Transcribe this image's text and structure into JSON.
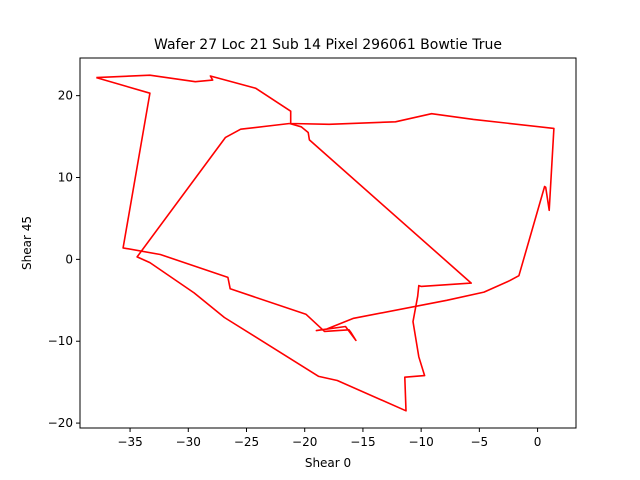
{
  "chart_data": {
    "type": "line",
    "title": "Wafer 27 Loc 21 Sub 14 Pixel 296061 Bowtie True",
    "xlabel": "Shear 0",
    "ylabel": "Shear 45",
    "xlim": [
      -39.3,
      3.3
    ],
    "ylim": [
      -20.6,
      24.6
    ],
    "xticks": [
      -35,
      -30,
      -25,
      -20,
      -15,
      -10,
      -5,
      0
    ],
    "xtick_labels": [
      "−35",
      "−30",
      "−25",
      "−20",
      "−15",
      "−10",
      "−5",
      "0"
    ],
    "yticks": [
      -20,
      -10,
      0,
      10,
      20
    ],
    "ytick_labels": [
      "−20",
      "−10",
      "0",
      "10",
      "20"
    ],
    "grid": false,
    "series": [
      {
        "color": "#ff0000",
        "points": [
          [
            -37.9,
            22.2
          ],
          [
            -33.3,
            22.5
          ],
          [
            -29.4,
            21.7
          ],
          [
            -27.9,
            21.9
          ],
          [
            -28.1,
            22.4
          ],
          [
            -24.2,
            20.9
          ],
          [
            -21.2,
            18.1
          ],
          [
            -21.2,
            16.6
          ],
          [
            -17.9,
            16.5
          ],
          [
            -12.2,
            16.8
          ],
          [
            -9.1,
            17.8
          ],
          [
            -5.5,
            17.1
          ],
          [
            1.4,
            16.0
          ],
          [
            1.0,
            6.0
          ],
          [
            0.7,
            8.8
          ],
          [
            0.6,
            8.9
          ],
          [
            -1.6,
            -2.0
          ],
          [
            -2.4,
            -2.6
          ],
          [
            -4.6,
            -4.0
          ],
          [
            -7.8,
            -5.0
          ],
          [
            -15.8,
            -7.2
          ],
          [
            -18.1,
            -8.5
          ],
          [
            -19.0,
            -8.7
          ],
          [
            -16.5,
            -8.2
          ],
          [
            -15.6,
            -9.9
          ],
          [
            -16.0,
            -9.0
          ],
          [
            -16.2,
            -8.6
          ],
          [
            -18.3,
            -8.8
          ],
          [
            -19.9,
            -6.7
          ],
          [
            -26.4,
            -3.6
          ],
          [
            -26.6,
            -2.2
          ],
          [
            -32.4,
            0.6
          ],
          [
            -35.6,
            1.4
          ],
          [
            -33.3,
            20.3
          ],
          [
            -37.9,
            22.2
          ]
        ]
      },
      {
        "color": "#ff0000",
        "points": [
          [
            -21.3,
            16.6
          ],
          [
            -20.3,
            16.2
          ],
          [
            -19.7,
            15.5
          ],
          [
            -19.6,
            14.6
          ],
          [
            -5.7,
            -2.9
          ],
          [
            -10.0,
            -3.3
          ],
          [
            -10.2,
            -3.2
          ],
          [
            -10.3,
            -4.5
          ],
          [
            -10.7,
            -7.6
          ],
          [
            -10.2,
            -11.9
          ],
          [
            -9.7,
            -14.2
          ],
          [
            -11.4,
            -14.4
          ],
          [
            -11.3,
            -18.5
          ],
          [
            -17.2,
            -14.8
          ],
          [
            -18.8,
            -14.3
          ],
          [
            -26.9,
            -7.1
          ],
          [
            -29.5,
            -4.1
          ],
          [
            -33.3,
            -0.4
          ],
          [
            -34.4,
            0.3
          ],
          [
            -26.8,
            14.9
          ],
          [
            -25.5,
            15.9
          ],
          [
            -21.3,
            16.6
          ]
        ]
      }
    ]
  }
}
